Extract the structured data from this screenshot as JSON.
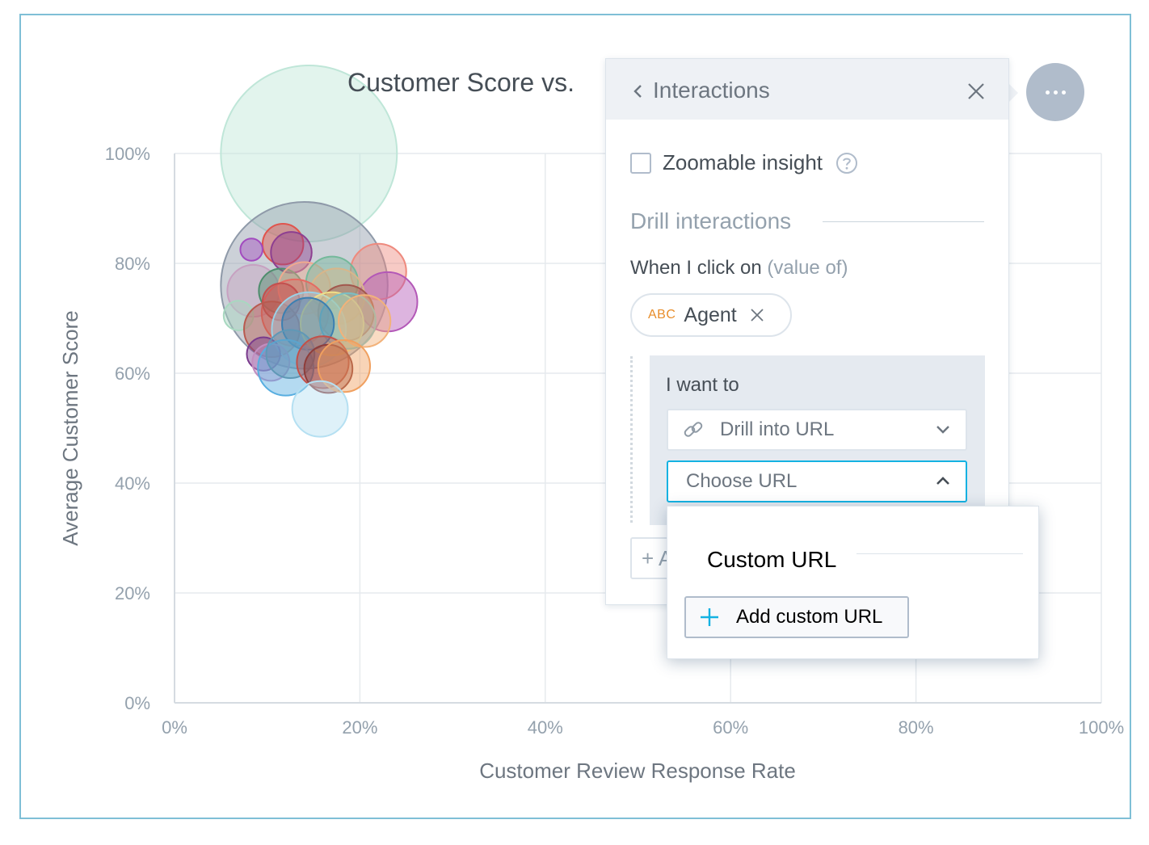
{
  "chart": {
    "title": "Customer Score vs.",
    "more_button_label": "…"
  },
  "chart_data": {
    "type": "scatter",
    "title": "Customer Score vs.",
    "xlabel": "Customer Review Response Rate",
    "ylabel": "Average Customer Score",
    "x_ticks": [
      "0%",
      "20%",
      "40%",
      "60%",
      "80%",
      "100%"
    ],
    "y_ticks": [
      "0%",
      "20%",
      "40%",
      "60%",
      "80%",
      "100%"
    ],
    "xlim": [
      0,
      100
    ],
    "ylim": [
      0,
      100
    ],
    "grid": true,
    "points": [
      {
        "x": 14.5,
        "y": 100,
        "r": 9.5,
        "color": "#bfe6d8"
      },
      {
        "x": 14,
        "y": 76,
        "r": 9,
        "color": "#8f9aa9"
      },
      {
        "x": 11.7,
        "y": 83.5,
        "r": 2.2,
        "color": "#e0544d"
      },
      {
        "x": 8.3,
        "y": 82.5,
        "r": 1.2,
        "color": "#a24bbf"
      },
      {
        "x": 12.6,
        "y": 82,
        "r": 2.2,
        "color": "#8d3f91"
      },
      {
        "x": 22,
        "y": 78.5,
        "r": 3,
        "color": "#ee8a7e"
      },
      {
        "x": 23,
        "y": 73,
        "r": 3.2,
        "color": "#b358b7"
      },
      {
        "x": 8.5,
        "y": 75,
        "r": 2.8,
        "color": "#c7a1c1"
      },
      {
        "x": 11.5,
        "y": 75,
        "r": 2.4,
        "color": "#4e8d6d"
      },
      {
        "x": 14,
        "y": 75.5,
        "r": 2.8,
        "color": "#f0a98e"
      },
      {
        "x": 17,
        "y": 76.5,
        "r": 2.8,
        "color": "#74b99b"
      },
      {
        "x": 17.5,
        "y": 74,
        "r": 3,
        "color": "#d8b68a"
      },
      {
        "x": 13,
        "y": 71,
        "r": 3.6,
        "color": "#e56a62"
      },
      {
        "x": 18.5,
        "y": 71,
        "r": 3,
        "color": "#a2584e"
      },
      {
        "x": 11.5,
        "y": 73,
        "r": 2,
        "color": "#c2504f"
      },
      {
        "x": 6.9,
        "y": 70.5,
        "r": 1.6,
        "color": "#a8d8c0"
      },
      {
        "x": 10.5,
        "y": 68,
        "r": 3,
        "color": "#b85a4f"
      },
      {
        "x": 14.5,
        "y": 68,
        "r": 4,
        "color": "#9bd1e6"
      },
      {
        "x": 17,
        "y": 69,
        "r": 3.4,
        "color": "#efe08a"
      },
      {
        "x": 18.7,
        "y": 69.5,
        "r": 3,
        "color": "#7abfc4"
      },
      {
        "x": 20.5,
        "y": 69.5,
        "r": 2.8,
        "color": "#f2b27a"
      },
      {
        "x": 14.4,
        "y": 69,
        "r": 2.8,
        "color": "#3c7fb1"
      },
      {
        "x": 9.6,
        "y": 63.5,
        "r": 1.8,
        "color": "#7a3b8d"
      },
      {
        "x": 10.4,
        "y": 62,
        "r": 2,
        "color": "#c28ec0"
      },
      {
        "x": 12,
        "y": 61,
        "r": 3,
        "color": "#58aee0"
      },
      {
        "x": 12.5,
        "y": 63.5,
        "r": 2.6,
        "color": "#5f98b6"
      },
      {
        "x": 16,
        "y": 62,
        "r": 2.8,
        "color": "#c35048"
      },
      {
        "x": 16.6,
        "y": 60.8,
        "r": 2.6,
        "color": "#8f3d3a"
      },
      {
        "x": 18.3,
        "y": 61.3,
        "r": 2.8,
        "color": "#f0a060"
      },
      {
        "x": 15.7,
        "y": 53.5,
        "r": 3,
        "color": "#b5e0f2"
      }
    ]
  },
  "panel": {
    "title": "Interactions",
    "zoomable_label": "Zoomable insight",
    "drill_section_title": "Drill interactions",
    "click_label": "When I click on",
    "click_label_muted": "(value of)",
    "attribute_type": "ABC",
    "attribute_label": "Agent",
    "want_label": "I want to",
    "drill_select_value": "Drill into URL",
    "url_select_placeholder": "Choose URL",
    "add_button_glyph": "+ A"
  },
  "dropdown": {
    "heading": "Custom URL",
    "add_custom_url_label": "Add custom URL"
  },
  "colors": {
    "accent": "#14b2e2",
    "frame_border": "#7fbfd6",
    "panel_header": "#eef1f5",
    "drill_box": "#e5eaf0",
    "attribute_type": "#e88d2a"
  }
}
